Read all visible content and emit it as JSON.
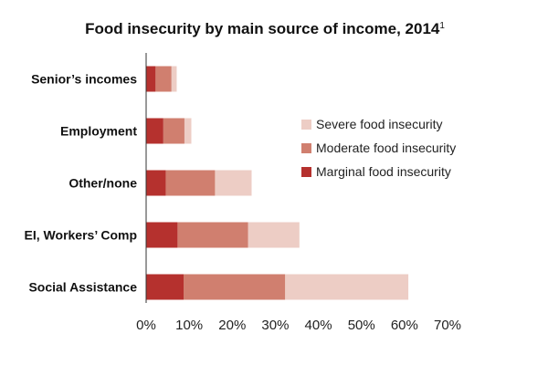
{
  "chart_data": {
    "type": "bar",
    "orientation": "horizontal",
    "stacked": true,
    "title": "Food insecurity by main source of income, 2014",
    "title_superscript": "1",
    "xlabel": "",
    "ylabel": "",
    "xlim": [
      0,
      70
    ],
    "x_ticks": [
      "0%",
      "10%",
      "20%",
      "30%",
      "40%",
      "50%",
      "60%",
      "70%"
    ],
    "grid": false,
    "legend_position": "right",
    "categories": [
      "Senior’s incomes",
      "Employment",
      "Other/none",
      "EI, Workers’ Comp",
      "Social Assistance"
    ],
    "series": [
      {
        "name": "Marginal food insecurity",
        "color": "#b5312e",
        "values": [
          2.2,
          4.0,
          4.6,
          7.3,
          8.7
        ]
      },
      {
        "name": "Moderate food insecurity",
        "color": "#d07f6f",
        "values": [
          3.7,
          4.9,
          11.4,
          16.4,
          23.6
        ]
      },
      {
        "name": "Severe food insecurity",
        "color": "#edcdc5",
        "values": [
          1.2,
          1.6,
          8.5,
          11.9,
          28.6
        ]
      }
    ],
    "legend_order": [
      "Severe food insecurity",
      "Moderate food insecurity",
      "Marginal food insecurity"
    ]
  }
}
